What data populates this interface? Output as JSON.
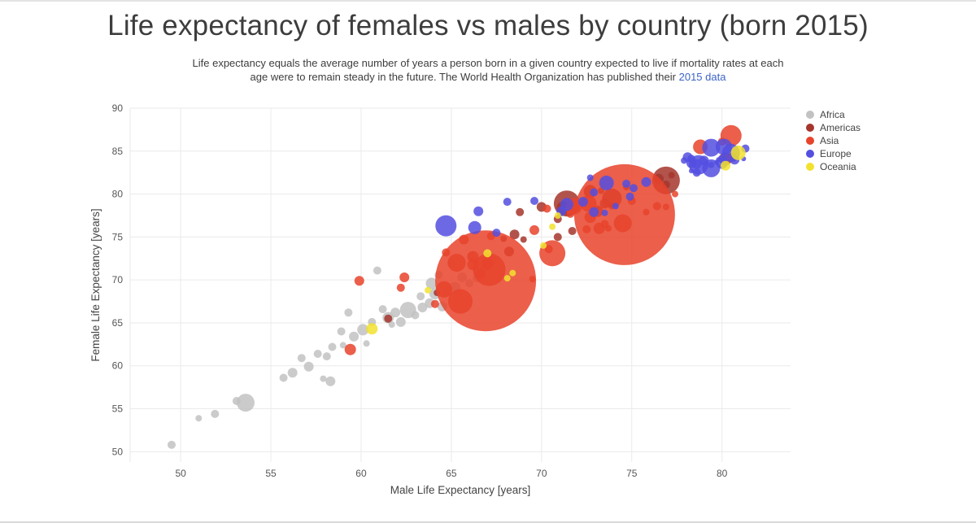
{
  "header": {
    "title": "Life expectancy of females vs males by country (born 2015)",
    "subtitle": "Life expectancy equals the average number of years a person born in a given country expected to live if mortality rates at each age were to remain steady in the future. The World Health Organization has published their",
    "subtitle_link": "2015 data",
    "link_color": "#3b63c8"
  },
  "chart_data": {
    "type": "scatter",
    "subtype": "bubble",
    "title": "Life expectancy of females vs males by country (born 2015)",
    "xlabel": "Male Life Expectancy [years]",
    "ylabel": "Female Life Expectancy [years]",
    "xlim": [
      47.2,
      83.8
    ],
    "ylim": [
      48.8,
      90
    ],
    "xticks": [
      50,
      55,
      60,
      65,
      70,
      75,
      80
    ],
    "yticks": [
      50,
      55,
      60,
      65,
      70,
      75,
      80,
      85,
      90
    ],
    "grid": true,
    "legend_position": "top-right",
    "marker_opacity": 0.85,
    "point_format": "[male_life_expectancy, female_life_expectancy, marker_radius_px]",
    "series": [
      {
        "name": "Africa",
        "color": "#c2c2c2",
        "points": [
          [
            49.5,
            50.8,
            5
          ],
          [
            51.0,
            53.9,
            4
          ],
          [
            51.9,
            54.4,
            5
          ],
          [
            53.1,
            55.9,
            5
          ],
          [
            53.6,
            55.7,
            11
          ],
          [
            55.7,
            58.6,
            5
          ],
          [
            56.2,
            59.2,
            6
          ],
          [
            56.7,
            60.9,
            5
          ],
          [
            57.1,
            59.9,
            6
          ],
          [
            57.6,
            61.4,
            5
          ],
          [
            57.9,
            58.5,
            4
          ],
          [
            58.1,
            61.1,
            5
          ],
          [
            58.3,
            58.2,
            6
          ],
          [
            58.4,
            62.2,
            5
          ],
          [
            58.9,
            64.0,
            5
          ],
          [
            59.0,
            62.4,
            4
          ],
          [
            59.3,
            66.2,
            5
          ],
          [
            59.6,
            63.4,
            6
          ],
          [
            60.1,
            64.2,
            7
          ],
          [
            60.3,
            62.6,
            4
          ],
          [
            60.6,
            65.1,
            5
          ],
          [
            60.9,
            71.1,
            5
          ],
          [
            61.2,
            66.6,
            5
          ],
          [
            61.5,
            65.6,
            7
          ],
          [
            61.7,
            64.8,
            4
          ],
          [
            61.9,
            66.2,
            6
          ],
          [
            62.2,
            65.1,
            6
          ],
          [
            62.6,
            66.5,
            10
          ],
          [
            63.0,
            65.9,
            5
          ],
          [
            63.3,
            68.1,
            5
          ],
          [
            63.4,
            66.8,
            6
          ],
          [
            63.8,
            67.3,
            6
          ],
          [
            63.9,
            69.6,
            7
          ],
          [
            64.1,
            68.4,
            7
          ],
          [
            64.5,
            66.9,
            6
          ],
          [
            64.8,
            68.6,
            6
          ],
          [
            65.2,
            69.1,
            7
          ],
          [
            65.6,
            70.3,
            6
          ],
          [
            66.0,
            69.6,
            5
          ],
          [
            66.4,
            70.2,
            5
          ],
          [
            66.8,
            71.4,
            5
          ],
          [
            67.3,
            72.3,
            5
          ],
          [
            64.3,
            70.6,
            5
          ],
          [
            65.0,
            71.9,
            5
          ],
          [
            66.1,
            72.8,
            5
          ]
        ]
      },
      {
        "name": "Americas",
        "color": "#a5362d",
        "points": [
          [
            61.5,
            65.5,
            5
          ],
          [
            64.2,
            68.5,
            4
          ],
          [
            67.9,
            74.8,
            4
          ],
          [
            68.2,
            73.3,
            6
          ],
          [
            68.5,
            75.3,
            6
          ],
          [
            68.8,
            77.9,
            5
          ],
          [
            69.0,
            74.7,
            4
          ],
          [
            70.0,
            78.5,
            6
          ],
          [
            70.9,
            75.0,
            5
          ],
          [
            70.9,
            77.1,
            5
          ],
          [
            71.2,
            78.4,
            8
          ],
          [
            71.4,
            78.9,
            16
          ],
          [
            71.5,
            77.9,
            5
          ],
          [
            71.7,
            75.7,
            5
          ],
          [
            72.7,
            80.3,
            8
          ],
          [
            73.1,
            78.0,
            7
          ],
          [
            73.3,
            80.4,
            4
          ],
          [
            73.5,
            78.9,
            6
          ],
          [
            73.9,
            78.6,
            4
          ],
          [
            73.9,
            79.5,
            12
          ],
          [
            74.7,
            80.8,
            4
          ],
          [
            76.5,
            81.8,
            6
          ],
          [
            76.9,
            81.1,
            5
          ],
          [
            76.9,
            81.6,
            17
          ],
          [
            77.2,
            82.2,
            4
          ],
          [
            80.2,
            84.1,
            8
          ]
        ]
      },
      {
        "name": "Asia",
        "color": "#e8432b",
        "points": [
          [
            59.4,
            61.9,
            7
          ],
          [
            59.9,
            69.9,
            6
          ],
          [
            62.2,
            69.1,
            5
          ],
          [
            62.4,
            70.3,
            6
          ],
          [
            64.1,
            67.2,
            5
          ],
          [
            64.6,
            68.9,
            10
          ],
          [
            64.7,
            73.2,
            5
          ],
          [
            65.3,
            72.0,
            11
          ],
          [
            65.5,
            67.5,
            15
          ],
          [
            65.7,
            74.7,
            6
          ],
          [
            66.2,
            71.8,
            7
          ],
          [
            66.2,
            72.7,
            7
          ],
          [
            66.6,
            70.7,
            6
          ],
          [
            66.9,
            69.9,
            62
          ],
          [
            67.0,
            71.9,
            7
          ],
          [
            67.1,
            71.2,
            20
          ],
          [
            67.2,
            75.1,
            5
          ],
          [
            69.5,
            70.1,
            4
          ],
          [
            69.6,
            75.8,
            6
          ],
          [
            70.3,
            78.3,
            5
          ],
          [
            70.4,
            73.6,
            5
          ],
          [
            70.6,
            73.1,
            16
          ],
          [
            71.6,
            77.7,
            5
          ],
          [
            71.6,
            78.3,
            6
          ],
          [
            71.8,
            78.6,
            10
          ],
          [
            72.5,
            75.9,
            5
          ],
          [
            72.6,
            78.9,
            10
          ],
          [
            72.7,
            77.3,
            7
          ],
          [
            73.2,
            76.0,
            7
          ],
          [
            73.5,
            76.5,
            5
          ],
          [
            73.7,
            76.0,
            4
          ],
          [
            74.5,
            76.6,
            11
          ],
          [
            74.6,
            77.6,
            62
          ],
          [
            75.0,
            79.2,
            5
          ],
          [
            75.8,
            77.9,
            4
          ],
          [
            76.4,
            78.6,
            5
          ],
          [
            76.9,
            78.5,
            4
          ],
          [
            77.4,
            80.0,
            4
          ],
          [
            78.8,
            85.5,
            9
          ],
          [
            80.0,
            86.1,
            5
          ],
          [
            80.5,
            86.8,
            13
          ],
          [
            80.6,
            84.3,
            6
          ]
        ]
      },
      {
        "name": "Europe",
        "color": "#544fe0",
        "points": [
          [
            64.7,
            76.3,
            13
          ],
          [
            66.3,
            76.1,
            8
          ],
          [
            66.5,
            78.0,
            6
          ],
          [
            67.5,
            75.5,
            5
          ],
          [
            68.1,
            79.1,
            5
          ],
          [
            69.6,
            79.2,
            5
          ],
          [
            71.1,
            78.0,
            6
          ],
          [
            71.4,
            78.8,
            8
          ],
          [
            72.3,
            79.1,
            6
          ],
          [
            72.7,
            81.9,
            4
          ],
          [
            72.9,
            77.9,
            6
          ],
          [
            72.9,
            80.2,
            5
          ],
          [
            73.5,
            77.8,
            4
          ],
          [
            73.6,
            81.3,
            9
          ],
          [
            74.1,
            78.6,
            4
          ],
          [
            74.7,
            81.2,
            5
          ],
          [
            74.9,
            79.7,
            5
          ],
          [
            75.1,
            80.7,
            5
          ],
          [
            75.8,
            81.4,
            6
          ],
          [
            77.9,
            83.9,
            4
          ],
          [
            78.1,
            84.3,
            6
          ],
          [
            78.3,
            82.7,
            3
          ],
          [
            78.3,
            83.6,
            6
          ],
          [
            78.3,
            84.1,
            5
          ],
          [
            78.6,
            82.5,
            5
          ],
          [
            78.6,
            83.5,
            6
          ],
          [
            78.7,
            83.4,
            12
          ],
          [
            79.0,
            83.9,
            6
          ],
          [
            79.4,
            83.0,
            11
          ],
          [
            79.4,
            83.4,
            4
          ],
          [
            79.4,
            85.4,
            11
          ],
          [
            79.7,
            83.7,
            3
          ],
          [
            79.8,
            84.0,
            3
          ],
          [
            80.0,
            83.6,
            7
          ],
          [
            80.0,
            84.1,
            5
          ],
          [
            80.1,
            85.5,
            10
          ],
          [
            80.5,
            84.8,
            11
          ],
          [
            80.7,
            84.0,
            6
          ],
          [
            81.2,
            84.1,
            3
          ],
          [
            81.3,
            85.3,
            5
          ]
        ]
      },
      {
        "name": "Oceania",
        "color": "#f2e22e",
        "points": [
          [
            60.6,
            64.3,
            7
          ],
          [
            63.7,
            68.8,
            4
          ],
          [
            67.0,
            73.1,
            5
          ],
          [
            68.1,
            70.2,
            4
          ],
          [
            68.4,
            70.8,
            4
          ],
          [
            70.1,
            74.0,
            4
          ],
          [
            70.6,
            76.2,
            4
          ],
          [
            70.9,
            77.5,
            4
          ],
          [
            80.2,
            83.3,
            6
          ],
          [
            80.9,
            84.8,
            9
          ]
        ]
      }
    ]
  }
}
